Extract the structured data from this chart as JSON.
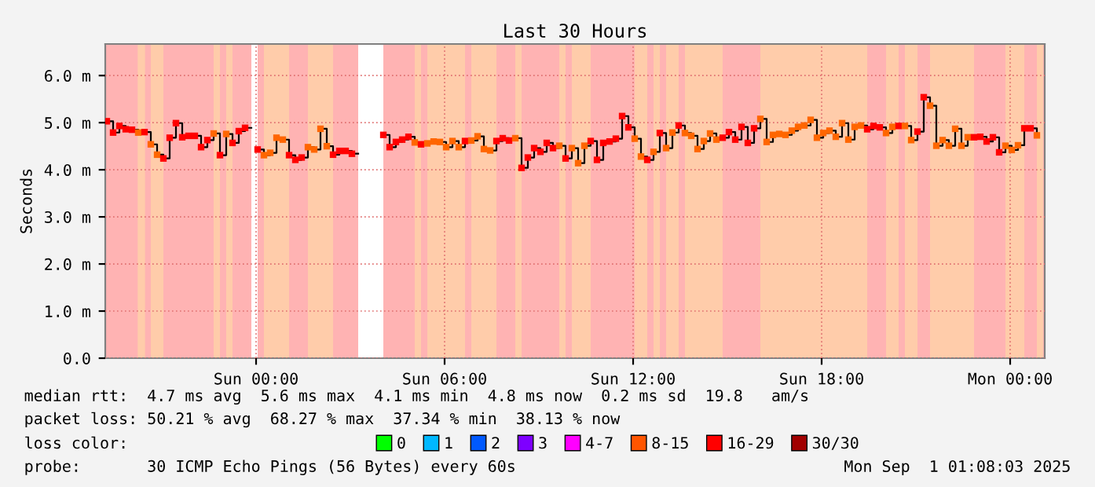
{
  "chart_data": {
    "type": "step",
    "title": "Last 30 Hours",
    "ylabel": "Seconds",
    "xlim": [
      "2025-08-30T19:12",
      "2025-09-01T01:06"
    ],
    "xticks": [
      {
        "value": "2025-08-31T00:00",
        "label": "Sun 00:00"
      },
      {
        "value": "2025-08-31T06:00",
        "label": "Sun 06:00"
      },
      {
        "value": "2025-08-31T12:00",
        "label": "Sun 12:00"
      },
      {
        "value": "2025-08-31T18:00",
        "label": "Sun 18:00"
      },
      {
        "value": "2025-09-01T00:00",
        "label": "Mon 00:00"
      }
    ],
    "ylim": [
      0,
      6.67
    ],
    "yticks": [
      {
        "value": 0,
        "label": "0.0"
      },
      {
        "value": 1,
        "label": "1.0 m"
      },
      {
        "value": 2,
        "label": "2.0 m"
      },
      {
        "value": 3,
        "label": "3.0 m"
      },
      {
        "value": 4,
        "label": "4.0 m"
      },
      {
        "value": 5,
        "label": "5.0 m"
      },
      {
        "value": 6,
        "label": "6.0 m"
      }
    ],
    "grid": true,
    "legend": "bottom left",
    "marker": "square",
    "line_style": "solid",
    "series": [
      {
        "color": "#000000",
        "x": [
          "2025-08-30T19:15",
          "2025-08-30T19:27",
          "2025-08-30T19:39",
          "2025-08-30T19:51",
          "2025-08-30T20:03",
          "2025-08-30T20:15",
          "2025-08-30T20:27",
          "2025-08-30T20:39",
          "2025-08-30T20:51",
          "2025-08-30T21:03",
          "2025-08-30T21:15",
          "2025-08-30T21:27",
          "2025-08-30T21:39",
          "2025-08-30T21:51",
          "2025-08-30T22:03",
          "2025-08-30T22:15",
          "2025-08-30T22:27",
          "2025-08-30T22:39",
          "2025-08-30T22:51",
          "2025-08-30T23:03",
          "2025-08-30T23:15",
          "2025-08-30T23:27",
          "2025-08-30T23:39",
          "2025-08-30T23:51",
          "2025-08-31T00:03",
          "2025-08-31T00:15",
          "2025-08-31T00:27",
          "2025-08-31T00:39",
          "2025-08-31T00:51",
          "2025-08-31T01:03",
          "2025-08-31T01:15",
          "2025-08-31T01:27",
          "2025-08-31T01:39",
          "2025-08-31T01:51",
          "2025-08-31T02:03",
          "2025-08-31T02:15",
          "2025-08-31T02:27",
          "2025-08-31T02:39",
          "2025-08-31T02:51",
          "2025-08-31T03:03",
          "2025-08-31T03:15",
          "2025-08-31T04:03",
          "2025-08-31T04:15",
          "2025-08-31T04:27",
          "2025-08-31T04:39",
          "2025-08-31T04:51",
          "2025-08-31T05:03",
          "2025-08-31T05:15",
          "2025-08-31T05:27",
          "2025-08-31T05:39",
          "2025-08-31T05:51",
          "2025-08-31T06:03",
          "2025-08-31T06:15",
          "2025-08-31T06:27",
          "2025-08-31T06:39",
          "2025-08-31T06:51",
          "2025-08-31T07:03",
          "2025-08-31T07:15",
          "2025-08-31T07:27",
          "2025-08-31T07:39",
          "2025-08-31T07:51",
          "2025-08-31T08:03",
          "2025-08-31T08:15",
          "2025-08-31T08:27",
          "2025-08-31T08:39",
          "2025-08-31T08:51",
          "2025-08-31T09:03",
          "2025-08-31T09:15",
          "2025-08-31T09:27",
          "2025-08-31T09:39",
          "2025-08-31T09:51",
          "2025-08-31T10:03",
          "2025-08-31T10:15",
          "2025-08-31T10:27",
          "2025-08-31T10:39",
          "2025-08-31T10:51",
          "2025-08-31T11:03",
          "2025-08-31T11:15",
          "2025-08-31T11:27",
          "2025-08-31T11:39",
          "2025-08-31T11:51",
          "2025-08-31T12:03",
          "2025-08-31T12:15",
          "2025-08-31T12:27",
          "2025-08-31T12:39",
          "2025-08-31T12:51",
          "2025-08-31T13:03",
          "2025-08-31T13:15",
          "2025-08-31T13:27",
          "2025-08-31T13:39",
          "2025-08-31T13:51",
          "2025-08-31T14:03",
          "2025-08-31T14:15",
          "2025-08-31T14:27",
          "2025-08-31T14:39",
          "2025-08-31T14:51",
          "2025-08-31T15:03",
          "2025-08-31T15:15",
          "2025-08-31T15:27",
          "2025-08-31T15:39",
          "2025-08-31T15:51",
          "2025-08-31T16:03",
          "2025-08-31T16:15",
          "2025-08-31T16:27",
          "2025-08-31T16:39",
          "2025-08-31T16:51",
          "2025-08-31T17:03",
          "2025-08-31T17:15",
          "2025-08-31T17:27",
          "2025-08-31T17:39",
          "2025-08-31T17:51",
          "2025-08-31T18:03",
          "2025-08-31T18:15",
          "2025-08-31T18:27",
          "2025-08-31T18:39",
          "2025-08-31T18:51",
          "2025-08-31T19:03",
          "2025-08-31T19:15",
          "2025-08-31T19:27",
          "2025-08-31T19:39",
          "2025-08-31T19:51",
          "2025-08-31T20:03",
          "2025-08-31T20:15",
          "2025-08-31T20:27",
          "2025-08-31T20:39",
          "2025-08-31T20:51",
          "2025-08-31T21:03",
          "2025-08-31T21:15",
          "2025-08-31T21:27",
          "2025-08-31T21:39",
          "2025-08-31T21:51",
          "2025-08-31T22:03",
          "2025-08-31T22:15",
          "2025-08-31T22:27",
          "2025-08-31T22:39",
          "2025-08-31T22:51",
          "2025-08-31T23:03",
          "2025-08-31T23:15",
          "2025-08-31T23:27",
          "2025-08-31T23:39",
          "2025-08-31T23:51",
          "2025-09-01T00:03",
          "2025-09-01T00:15",
          "2025-09-01T00:27",
          "2025-09-01T00:39",
          "2025-09-01T00:51"
        ],
        "values": [
          5.03,
          4.79,
          4.93,
          4.86,
          4.85,
          4.79,
          4.8,
          4.54,
          4.32,
          4.24,
          4.68,
          4.99,
          4.69,
          4.72,
          4.72,
          4.48,
          4.63,
          4.77,
          4.31,
          4.76,
          4.57,
          4.82,
          4.89,
          null,
          4.43,
          4.31,
          4.36,
          4.68,
          4.64,
          4.31,
          4.21,
          4.26,
          4.48,
          4.43,
          4.87,
          4.5,
          4.32,
          4.4,
          4.4,
          4.34,
          null,
          4.74,
          4.48,
          4.59,
          4.64,
          4.7,
          4.58,
          4.54,
          4.56,
          4.6,
          4.59,
          4.48,
          4.61,
          4.48,
          4.61,
          4.62,
          4.71,
          4.44,
          4.41,
          4.61,
          4.67,
          4.62,
          4.67,
          4.04,
          4.26,
          4.46,
          4.38,
          4.57,
          4.46,
          4.51,
          4.24,
          4.46,
          4.14,
          4.51,
          4.61,
          4.21,
          4.57,
          4.6,
          4.66,
          5.14,
          4.9,
          4.66,
          4.28,
          4.21,
          4.38,
          4.78,
          4.46,
          4.79,
          4.94,
          4.78,
          4.72,
          4.44,
          4.61,
          4.77,
          4.64,
          4.68,
          4.8,
          4.64,
          4.91,
          4.57,
          4.88,
          5.08,
          4.59,
          4.74,
          4.76,
          4.74,
          4.83,
          4.91,
          4.94,
          5.06,
          4.68,
          4.78,
          4.83,
          4.7,
          4.99,
          4.64,
          4.91,
          4.94,
          4.86,
          4.93,
          4.9,
          4.78,
          4.91,
          4.93,
          4.93,
          4.63,
          4.81,
          5.54,
          5.36,
          4.51,
          4.63,
          4.51,
          4.87,
          4.51,
          4.69,
          4.69,
          4.7,
          4.6,
          4.69,
          4.37,
          4.51,
          4.42,
          4.52,
          4.88,
          4.88,
          4.73
        ],
        "colors": [
          "#ff0000",
          "#ff0000",
          "#ff0000",
          "#ff0000",
          "#ff0000",
          "#ff6600",
          "#ff0000",
          "#ff6600",
          "#ff6600",
          "#ff0000",
          "#ff0000",
          "#ff0000",
          "#ff0000",
          "#ff0000",
          "#ff0000",
          "#ff0000",
          "#ff0000",
          "#ff6600",
          "#ff0000",
          "#ff6600",
          "#ff0000",
          "#ff0000",
          "#ff0000",
          null,
          "#ff0000",
          "#ff6600",
          "#ff6600",
          "#ff6600",
          "#ff6600",
          "#ff0000",
          "#ff0000",
          "#ff0000",
          "#ff6600",
          "#ff6600",
          "#ff6600",
          "#ff6600",
          "#ff0000",
          "#ff0000",
          "#ff0000",
          "#ff0000",
          null,
          "#ff0000",
          "#ff0000",
          "#ff0000",
          "#ff0000",
          "#ff0000",
          "#ff6600",
          "#ff0000",
          "#ff6600",
          "#ff6600",
          "#ff6600",
          "#ff6600",
          "#ff6600",
          "#ff6600",
          "#ff0000",
          "#ff6600",
          "#ff6600",
          "#ff6600",
          "#ff6600",
          "#ff0000",
          "#ff0000",
          "#ff0000",
          "#ff6600",
          "#ff0000",
          "#ff0000",
          "#ff0000",
          "#ff0000",
          "#ff0000",
          "#ff0000",
          "#ff6600",
          "#ff0000",
          "#ff6600",
          "#ff6600",
          "#ff6600",
          "#ff0000",
          "#ff0000",
          "#ff0000",
          "#ff0000",
          "#ff0000",
          "#ff0000",
          "#ff0000",
          "#ff6600",
          "#ff6600",
          "#ff0000",
          "#ff6600",
          "#ff0000",
          "#ff6600",
          "#ff6600",
          "#ff0000",
          "#ff6600",
          "#ff6600",
          "#ff6600",
          "#ff6600",
          "#ff6600",
          "#ff6600",
          "#ff0000",
          "#ff0000",
          "#ff0000",
          "#ff0000",
          "#ff0000",
          "#ff0000",
          "#ff6600",
          "#ff6600",
          "#ff6600",
          "#ff6600",
          "#ff6600",
          "#ff6600",
          "#ff6600",
          "#ff6600",
          "#ff6600",
          "#ff6600",
          "#ff6600",
          "#ff6600",
          "#ff6600",
          "#ff6600",
          "#ff6600",
          "#ff6600",
          "#ff6600",
          "#ff0000",
          "#ff0000",
          "#ff0000",
          "#ff6600",
          "#ff6600",
          "#ff0000",
          "#ff6600",
          "#ff6600",
          "#ff0000",
          "#ff0000",
          "#ff6600",
          "#ff6600",
          "#ff6600",
          "#ff6600",
          "#ff6600",
          "#ff6600",
          "#ff6600",
          "#ff0000",
          "#ff0000",
          "#ff0000",
          "#ff0000",
          "#ff0000",
          "#ff6600",
          "#ff6600",
          "#ff6600",
          "#ff0000",
          "#ff0000",
          "#ff6600"
        ]
      },
      {
        "name": "0",
        "color": "#00ff00"
      },
      {
        "name": "1",
        "color": "#00b8ff"
      },
      {
        "name": "2",
        "color": "#0059ff"
      },
      {
        "name": "3",
        "color": "#7e00ff"
      },
      {
        "name": "4-7",
        "color": "#ff00ff"
      },
      {
        "name": "8-15",
        "color": "#ff5500"
      },
      {
        "name": "16-29",
        "color": "#ff0000"
      },
      {
        "name": "30/30",
        "color": "#a10000"
      }
    ],
    "bands": [
      {
        "axis": "x",
        "from": "2025-08-30T20:14",
        "to": "2025-08-30T20:28",
        "color": "#ffccaa"
      },
      {
        "axis": "x",
        "from": "2025-08-30T20:39",
        "to": "2025-08-30T21:03",
        "color": "#ffccaa"
      },
      {
        "axis": "x",
        "from": "2025-08-30T22:39",
        "to": "2025-08-30T22:51",
        "color": "#ffccaa"
      },
      {
        "axis": "x",
        "from": "2025-08-30T23:03",
        "to": "2025-08-30T23:15",
        "color": "#ffccaa"
      },
      {
        "axis": "x",
        "from": "2025-08-30T23:51",
        "to": "2025-08-31T00:03",
        "color": "#ffffff"
      },
      {
        "axis": "x",
        "from": "2025-08-31T00:15",
        "to": "2025-08-31T01:03",
        "color": "#ffccaa"
      },
      {
        "axis": "x",
        "from": "2025-08-31T01:39",
        "to": "2025-08-31T02:27",
        "color": "#ffccaa"
      },
      {
        "axis": "x",
        "from": "2025-08-31T03:15",
        "to": "2025-08-31T04:03",
        "color": "#ffffff"
      },
      {
        "axis": "x",
        "from": "2025-08-31T05:03",
        "to": "2025-08-31T05:15",
        "color": "#ffccaa"
      },
      {
        "axis": "x",
        "from": "2025-08-31T05:27",
        "to": "2025-08-31T06:39",
        "color": "#ffccaa"
      },
      {
        "axis": "x",
        "from": "2025-08-31T06:51",
        "to": "2025-08-31T07:39",
        "color": "#ffccaa"
      },
      {
        "axis": "x",
        "from": "2025-08-31T08:15",
        "to": "2025-08-31T08:27",
        "color": "#ffccaa"
      },
      {
        "axis": "x",
        "from": "2025-08-31T09:39",
        "to": "2025-08-31T09:51",
        "color": "#ffccaa"
      },
      {
        "axis": "x",
        "from": "2025-08-31T10:03",
        "to": "2025-08-31T10:39",
        "color": "#ffccaa"
      },
      {
        "axis": "x",
        "from": "2025-08-31T12:03",
        "to": "2025-08-31T12:27",
        "color": "#ffccaa"
      },
      {
        "axis": "x",
        "from": "2025-08-31T12:39",
        "to": "2025-08-31T12:51",
        "color": "#ffccaa"
      },
      {
        "axis": "x",
        "from": "2025-08-31T13:03",
        "to": "2025-08-31T13:27",
        "color": "#ffccaa"
      },
      {
        "axis": "x",
        "from": "2025-08-31T13:39",
        "to": "2025-08-31T14:51",
        "color": "#ffccaa"
      },
      {
        "axis": "x",
        "from": "2025-08-31T16:03",
        "to": "2025-08-31T19:27",
        "color": "#ffccaa"
      },
      {
        "axis": "x",
        "from": "2025-08-31T20:03",
        "to": "2025-08-31T20:27",
        "color": "#ffccaa"
      },
      {
        "axis": "x",
        "from": "2025-08-31T20:39",
        "to": "2025-08-31T21:03",
        "color": "#ffccaa"
      },
      {
        "axis": "x",
        "from": "2025-08-31T21:27",
        "to": "2025-08-31T22:51",
        "color": "#ffccaa"
      },
      {
        "axis": "x",
        "from": "2025-08-31T23:51",
        "to": "2025-09-01T00:27",
        "color": "#ffccaa"
      },
      {
        "axis": "x",
        "from": "2025-09-01T00:51",
        "to": "2025-09-01T01:03",
        "color": "#ffccaa"
      }
    ],
    "annotations": [
      "median rtt:  4.7 ms avg  5.6 ms max  4.1 ms min  4.8 ms now  0.2 ms sd  19.8   am/s",
      "packet loss: 50.21 % avg  68.27 % max  37.34 % min  38.13 % now",
      "loss color:",
      "probe:       30 ICMP Echo Pings (56 Bytes) every 60s",
      "Mon Sep  1 01:08:03 2025"
    ]
  }
}
